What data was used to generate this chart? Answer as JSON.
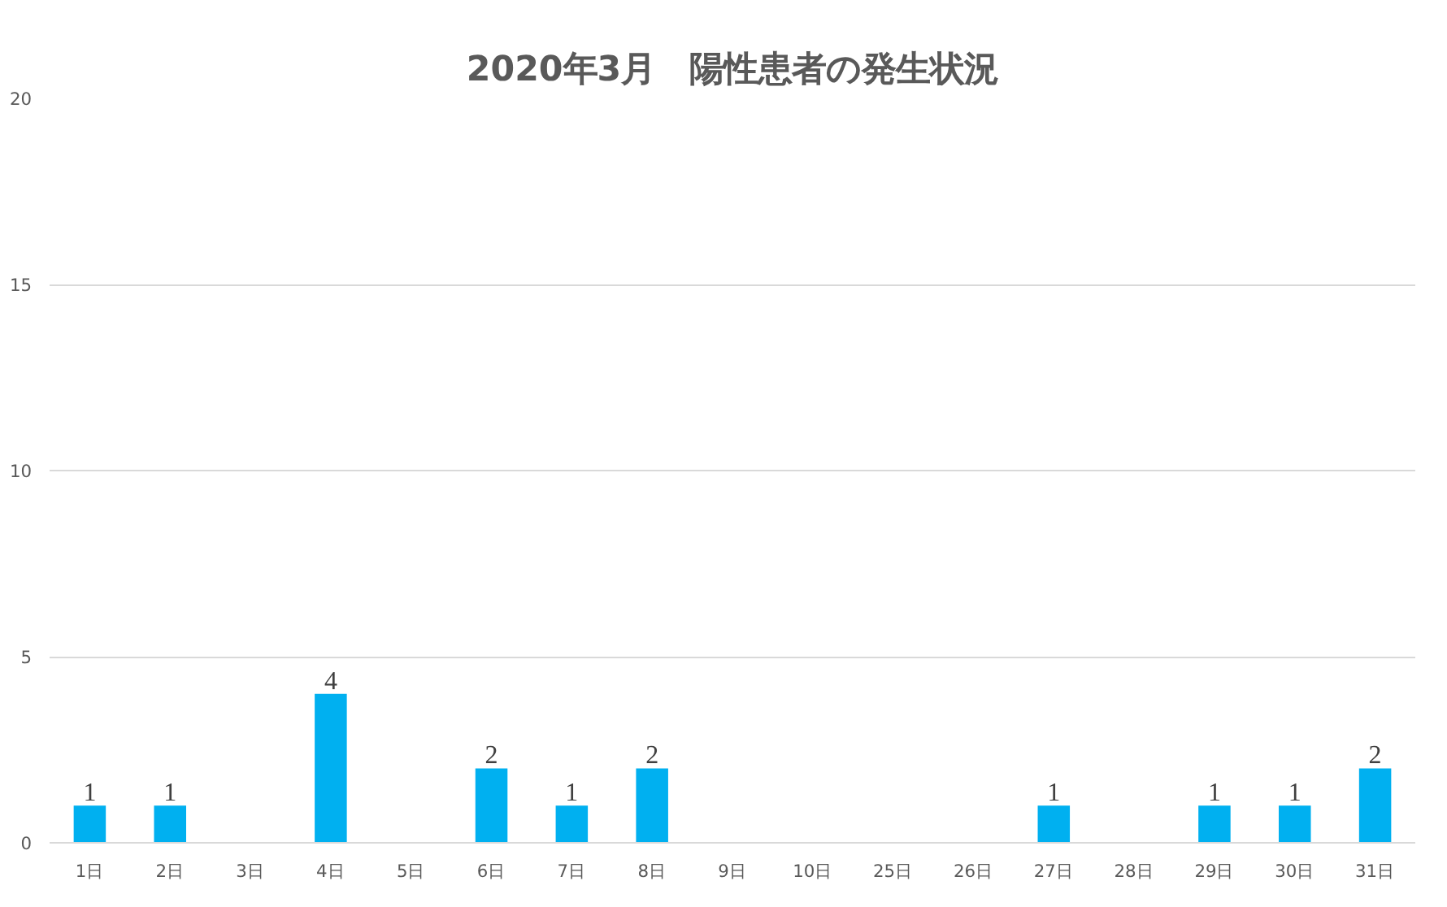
{
  "chart_data": {
    "type": "bar",
    "title": "2020年3月　陽性患者の発生状況",
    "categories": [
      "1日",
      "2日",
      "3日",
      "4日",
      "5日",
      "6日",
      "7日",
      "8日",
      "9日",
      "10日",
      "25日",
      "26日",
      "27日",
      "28日",
      "29日",
      "30日",
      "31日"
    ],
    "values": [
      1,
      1,
      0,
      4,
      0,
      2,
      1,
      2,
      0,
      0,
      0,
      0,
      1,
      0,
      1,
      1,
      2
    ],
    "value_labels": [
      "1",
      "1",
      null,
      "4",
      null,
      "2",
      "1",
      "2",
      null,
      null,
      null,
      null,
      "1",
      null,
      "1",
      "1",
      "2"
    ],
    "color": "#00b0f0",
    "ylim": [
      0,
      20
    ],
    "yticks": [
      0,
      5,
      10,
      15,
      20
    ],
    "grid": "y"
  }
}
